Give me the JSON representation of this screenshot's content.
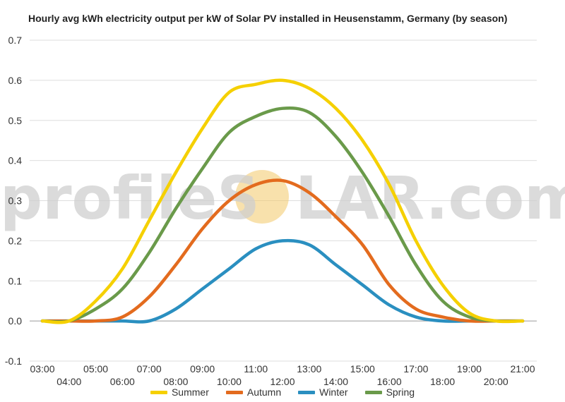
{
  "chart_data": {
    "type": "line",
    "title": "Hourly avg kWh electricity output per kW of Solar PV installed in Heusenstamm, Germany (by season)",
    "x": [
      "03:00",
      "04:00",
      "05:00",
      "06:00",
      "07:00",
      "08:00",
      "09:00",
      "10:00",
      "11:00",
      "12:00",
      "13:00",
      "14:00",
      "15:00",
      "16:00",
      "17:00",
      "18:00",
      "19:00",
      "20:00",
      "21:00"
    ],
    "ylim": [
      -0.1,
      0.7
    ],
    "yticks": [
      "-0.1",
      "0.0",
      "0.1",
      "0.2",
      "0.3",
      "0.4",
      "0.5",
      "0.6",
      "0.7"
    ],
    "grid": true,
    "legend_position": "bottom",
    "series": [
      {
        "name": "Summer",
        "color": "#f5d000",
        "values": [
          0.0,
          0.0,
          0.05,
          0.13,
          0.25,
          0.37,
          0.48,
          0.57,
          0.59,
          0.6,
          0.58,
          0.53,
          0.45,
          0.34,
          0.2,
          0.09,
          0.02,
          0.0,
          0.0
        ]
      },
      {
        "name": "Autumn",
        "color": "#e36b1e",
        "values": [
          0.0,
          0.0,
          0.0,
          0.01,
          0.06,
          0.14,
          0.23,
          0.3,
          0.34,
          0.35,
          0.32,
          0.26,
          0.19,
          0.09,
          0.03,
          0.01,
          0.0,
          0.0,
          0.0
        ]
      },
      {
        "name": "Winter",
        "color": "#2a8fc0",
        "values": [
          0.0,
          0.0,
          0.0,
          0.0,
          0.0,
          0.03,
          0.08,
          0.13,
          0.18,
          0.2,
          0.19,
          0.14,
          0.09,
          0.04,
          0.01,
          0.0,
          0.0,
          0.0,
          0.0
        ]
      },
      {
        "name": "Spring",
        "color": "#6a9a4a",
        "values": [
          0.0,
          0.0,
          0.03,
          0.08,
          0.17,
          0.28,
          0.38,
          0.47,
          0.51,
          0.53,
          0.52,
          0.46,
          0.37,
          0.26,
          0.14,
          0.05,
          0.01,
          0.0,
          0.0
        ]
      }
    ]
  },
  "watermark": {
    "text_left": "profileS",
    "text_right": "LAR.com",
    "sun_color": "#f3c867"
  }
}
